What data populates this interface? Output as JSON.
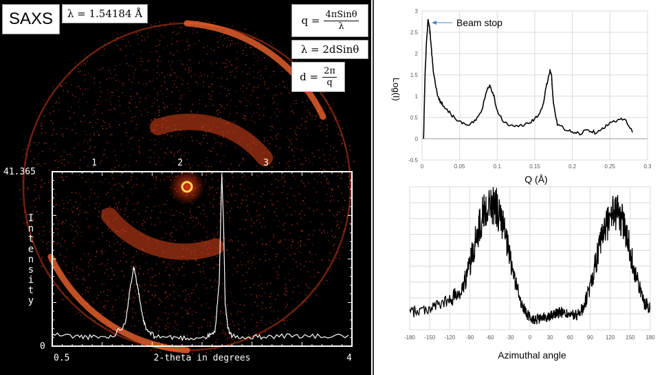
{
  "left_panel": {
    "title": "SAXS",
    "wavelength": "λ = 1.54184 Å",
    "formula_q": {
      "lhs": "q =",
      "num": "4πSinθ",
      "den": "λ"
    },
    "formula_bragg": "λ = 2dSinθ",
    "formula_d": {
      "lhs": "d =",
      "num": "2π",
      "den": "q"
    }
  },
  "chart_data": [
    {
      "type": "line",
      "xlabel": "2-theta in degrees",
      "ylabel": "Intensity",
      "xlim": [
        0.5,
        4
      ],
      "ylim": [
        0,
        41.365
      ],
      "bottom_ticks": [
        "0.5",
        "4"
      ],
      "top_ticks": [
        "1",
        "2",
        "3"
      ],
      "y_top_label": "41.365",
      "y_bottom_label": "0",
      "series": [
        {
          "x": [
            0.5,
            0.8,
            1.0,
            1.2,
            1.35,
            1.4,
            1.45,
            1.5,
            1.55,
            1.6,
            1.7,
            1.9,
            2.1,
            2.3,
            2.4,
            2.45,
            2.48,
            2.5,
            2.52,
            2.55,
            2.6,
            2.8,
            3.0,
            3.3,
            3.6,
            4.0
          ],
          "y": [
            2.5,
            2.0,
            1.8,
            2.0,
            5.0,
            12.0,
            19.0,
            14.0,
            7.0,
            3.5,
            2.0,
            1.8,
            1.6,
            1.8,
            3.0,
            15.0,
            41.0,
            30.0,
            10.0,
            4.0,
            2.0,
            1.8,
            2.0,
            2.2,
            2.0,
            2.2
          ]
        }
      ],
      "color": "#ffffff"
    },
    {
      "type": "line",
      "xlabel": "Q (Å)",
      "ylabel": "Log(I)",
      "xlim": [
        0,
        0.3
      ],
      "ylim": [
        -0.5,
        3
      ],
      "xticks": [
        "0",
        "0.05",
        "0.1",
        "0.15",
        "0.2",
        "0.25",
        "0.3"
      ],
      "yticks": [
        "-0.5",
        "0",
        "0.5",
        "1",
        "1.5",
        "2",
        "2.5",
        "3"
      ],
      "annotation": "Beam stop",
      "grid": true,
      "series": [
        {
          "x": [
            0.002,
            0.004,
            0.006,
            0.008,
            0.01,
            0.012,
            0.015,
            0.02,
            0.025,
            0.03,
            0.04,
            0.05,
            0.06,
            0.07,
            0.08,
            0.085,
            0.09,
            0.095,
            0.1,
            0.11,
            0.12,
            0.13,
            0.14,
            0.15,
            0.16,
            0.165,
            0.17,
            0.172,
            0.175,
            0.18,
            0.19,
            0.2,
            0.21,
            0.22,
            0.23,
            0.24,
            0.25,
            0.26,
            0.27,
            0.28
          ],
          "y": [
            0.0,
            1.5,
            2.3,
            2.8,
            2.6,
            2.2,
            1.6,
            1.05,
            0.85,
            0.75,
            0.55,
            0.4,
            0.3,
            0.4,
            0.7,
            1.1,
            1.25,
            1.05,
            0.65,
            0.38,
            0.3,
            0.3,
            0.35,
            0.45,
            0.7,
            1.2,
            1.6,
            1.55,
            0.8,
            0.35,
            0.22,
            0.15,
            0.12,
            0.22,
            0.15,
            0.25,
            0.35,
            0.45,
            0.45,
            0.15
          ]
        }
      ],
      "color": "#000000"
    },
    {
      "type": "line",
      "xlabel": "Azimuthal angle",
      "ylabel": "",
      "xlim": [
        -180,
        180
      ],
      "xticks": [
        "-180",
        "-150",
        "-120",
        "-90",
        "-60",
        "-30",
        "0",
        "30",
        "60",
        "90",
        "120",
        "150",
        "180"
      ],
      "grid": true,
      "series": [
        {
          "x": [
            -180,
            -150,
            -120,
            -100,
            -90,
            -80,
            -70,
            -60,
            -50,
            -40,
            -30,
            -20,
            -10,
            0,
            10,
            20,
            30,
            40,
            50,
            60,
            70,
            80,
            90,
            100,
            110,
            120,
            130,
            140,
            150,
            160,
            170,
            180
          ],
          "y": [
            0.12,
            0.15,
            0.2,
            0.3,
            0.45,
            0.65,
            0.82,
            0.88,
            0.85,
            0.72,
            0.5,
            0.3,
            0.15,
            0.08,
            0.07,
            0.08,
            0.1,
            0.12,
            0.12,
            0.1,
            0.1,
            0.15,
            0.3,
            0.5,
            0.68,
            0.8,
            0.82,
            0.75,
            0.55,
            0.35,
            0.2,
            0.15
          ]
        }
      ],
      "color": "#000000"
    }
  ]
}
